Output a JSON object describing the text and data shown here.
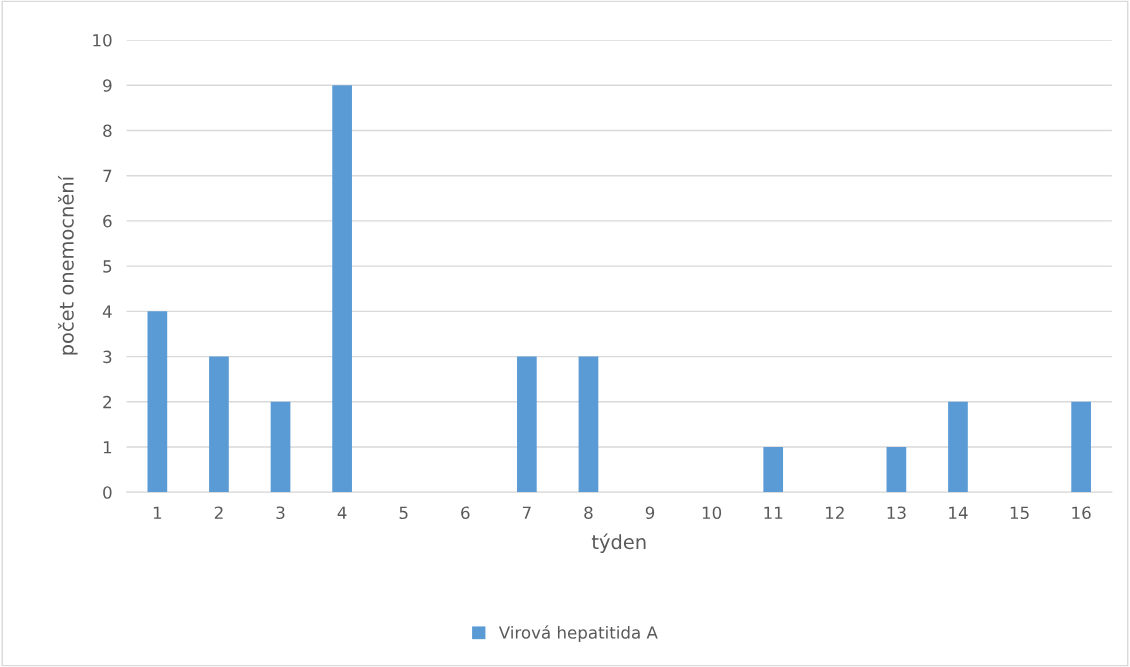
{
  "chart_data": {
    "type": "bar",
    "xlabel": "týden",
    "ylabel": "počet onemocnění",
    "categories": [
      "1",
      "2",
      "3",
      "4",
      "5",
      "6",
      "7",
      "8",
      "9",
      "10",
      "11",
      "12",
      "13",
      "14",
      "15",
      "16"
    ],
    "series": [
      {
        "name": "Virová hepatitida A",
        "color": "#5b9bd5",
        "values": [
          4,
          3,
          2,
          9,
          0,
          0,
          3,
          3,
          0,
          0,
          1,
          0,
          1,
          2,
          0,
          2
        ]
      }
    ],
    "ylim": [
      0,
      10
    ],
    "yticks": [
      0,
      1,
      2,
      3,
      4,
      5,
      6,
      7,
      8,
      9,
      10
    ],
    "grid": "y",
    "legend": "bottom"
  }
}
